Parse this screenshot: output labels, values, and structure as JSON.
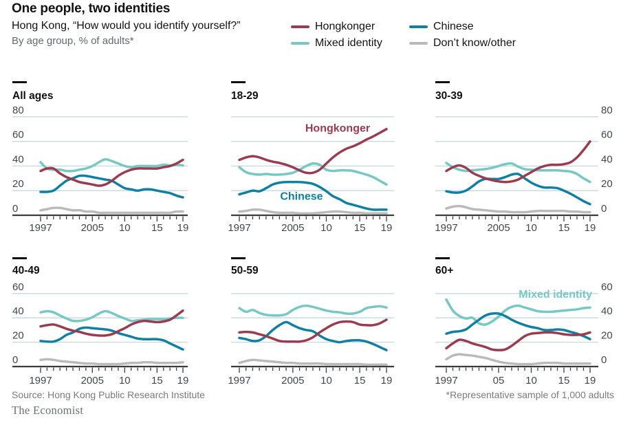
{
  "header": {
    "title": "One people, two identities",
    "subtitle": "Hong Kong, “How would you identify yourself?”",
    "note": "By age group, % of adults*"
  },
  "legend": [
    {
      "label": "Hongkonger",
      "color": "#9b3b4f"
    },
    {
      "label": "Chinese",
      "color": "#0f80a3"
    },
    {
      "label": "Mixed identity",
      "color": "#76c8c3"
    },
    {
      "label": "Don’t know/other",
      "color": "#b9bbba"
    }
  ],
  "footer": {
    "source": "Source: Hong Kong Public Research Institute",
    "note": "*Representative sample of 1,000 adults",
    "brand": "The Economist"
  },
  "colors": {
    "gridline": "#c4d7e0",
    "axis": "#3b3b3b",
    "tick_label": "#40474c",
    "panel_title": "#0f0f0f"
  },
  "years": [
    1997,
    1998,
    1999,
    2000,
    2001,
    2002,
    2003,
    2004,
    2005,
    2006,
    2007,
    2008,
    2009,
    2010,
    2011,
    2012,
    2013,
    2014,
    2015,
    2016,
    2017,
    2018,
    2019
  ],
  "chart_data": [
    {
      "type": "line",
      "title": "All ages",
      "ylim": [
        0,
        80
      ],
      "yticks": [
        0,
        20,
        40,
        60,
        80
      ],
      "xtick_years": [
        1997,
        2005,
        2010,
        2015,
        2019
      ],
      "xtick_labels": [
        "1997",
        "2005",
        "10",
        "15",
        "19"
      ],
      "series": [
        {
          "name": "Hongkonger",
          "values": [
            36,
            38,
            38,
            34,
            31,
            29,
            27,
            26,
            25,
            24,
            25,
            28,
            32,
            35,
            37,
            38,
            38,
            38,
            38,
            39,
            40,
            42,
            45
          ]
        },
        {
          "name": "Chinese",
          "values": [
            19,
            19,
            20,
            24,
            28,
            30,
            32,
            32,
            31,
            30,
            29,
            28,
            25,
            22,
            21,
            20,
            21,
            21,
            20,
            19,
            18,
            16,
            14.5
          ]
        },
        {
          "name": "Mixed identity",
          "values": [
            43,
            38,
            37,
            37,
            36,
            36,
            37,
            38,
            40,
            43,
            45.5,
            44,
            42,
            40,
            39,
            40,
            40,
            40,
            40,
            41,
            40.5,
            41,
            40.5
          ]
        },
        {
          "name": "Don’t know/other",
          "values": [
            4,
            5,
            6,
            6,
            5,
            4,
            4,
            3,
            3,
            2,
            2,
            2,
            2,
            2,
            2,
            2,
            2,
            2,
            2,
            2,
            2,
            3,
            3
          ]
        }
      ],
      "annotations": []
    },
    {
      "type": "line",
      "title": "18-29",
      "ylim": [
        0,
        80
      ],
      "yticks": [
        0,
        20,
        40,
        60,
        80
      ],
      "xtick_years": [
        1997,
        2005,
        2010,
        2015,
        2019
      ],
      "xtick_labels": [
        "1997",
        "2005",
        "10",
        "15",
        "19"
      ],
      "series": [
        {
          "name": "Hongkonger",
          "values": [
            45,
            47,
            48,
            47,
            45,
            43.5,
            42.5,
            41,
            39,
            36.5,
            34.5,
            34.5,
            37,
            42,
            47,
            51,
            54,
            56,
            58.5,
            61.5,
            64,
            67,
            70
          ]
        },
        {
          "name": "Chinese",
          "values": [
            17,
            18.5,
            20,
            19.5,
            22,
            25,
            26.5,
            27,
            27,
            27,
            26.5,
            25.5,
            23,
            19.5,
            15.5,
            13,
            10,
            8.5,
            7,
            5.5,
            4.5,
            4.5,
            4.5
          ]
        },
        {
          "name": "Mixed identity",
          "values": [
            39,
            35,
            33.5,
            33,
            33.5,
            33,
            33,
            33.5,
            34.5,
            37,
            40,
            42,
            41,
            37,
            36,
            36.5,
            36.5,
            36,
            34.5,
            33,
            31,
            28,
            25
          ]
        },
        {
          "name": "Don’t know/other",
          "values": [
            3,
            3.5,
            4.5,
            4.5,
            3.5,
            2.5,
            2,
            2,
            2,
            1.5,
            1.5,
            1.5,
            2,
            2.5,
            3,
            3,
            2.5,
            2,
            2,
            1.5,
            1.5,
            1.5,
            1.5
          ]
        }
      ],
      "annotations": [
        {
          "text": "Hongkonger",
          "year": 2011.7,
          "value": 68
        },
        {
          "text": "Chinese",
          "year": 2006.3,
          "value": 12.5
        }
      ]
    },
    {
      "type": "line",
      "title": "30-39",
      "ylim": [
        0,
        80
      ],
      "yticks": [
        0,
        20,
        40,
        60,
        80
      ],
      "xtick_years": [
        1997,
        2005,
        2010,
        2015,
        2019
      ],
      "xtick_labels": [
        "1997",
        "2005",
        "10",
        "15",
        "19"
      ],
      "series": [
        {
          "name": "Hongkonger",
          "values": [
            36,
            39,
            40.5,
            38.5,
            34.5,
            32,
            30,
            28.5,
            27.5,
            27,
            27.5,
            29,
            32,
            35,
            38,
            40,
            41,
            41,
            41.5,
            43,
            47,
            53,
            60
          ]
        },
        {
          "name": "Chinese",
          "values": [
            19.5,
            18.5,
            18.5,
            20,
            23.5,
            27.5,
            29.5,
            29.5,
            29.5,
            31,
            33,
            33.5,
            30,
            26.5,
            24,
            22.5,
            22.5,
            22,
            20,
            17.5,
            14.5,
            11.5,
            9
          ]
        },
        {
          "name": "Mixed identity",
          "values": [
            42.5,
            39,
            37,
            36,
            36.5,
            37,
            37.5,
            38.5,
            40,
            41.5,
            42,
            39.5,
            37.5,
            37,
            36.5,
            36.5,
            36.5,
            36.5,
            36,
            35.5,
            33.5,
            30,
            27
          ]
        },
        {
          "name": "Don’t know/other",
          "values": [
            5.5,
            7,
            7.5,
            6.5,
            5,
            4.5,
            4,
            3.5,
            3,
            3,
            2.5,
            2.5,
            2.5,
            3,
            3.5,
            3.5,
            3.5,
            3.5,
            3.5,
            3,
            3,
            2.5,
            2.5
          ]
        }
      ],
      "annotations": []
    },
    {
      "type": "line",
      "title": "40-49",
      "ylim": [
        0,
        60
      ],
      "yticks": [
        0,
        20,
        40,
        60
      ],
      "xtick_years": [
        1997,
        2005,
        2010,
        2015,
        2019
      ],
      "xtick_labels": [
        "1997",
        "2005",
        "10",
        "15",
        "19"
      ],
      "series": [
        {
          "name": "Hongkonger",
          "values": [
            33,
            34,
            34.5,
            33,
            31,
            29.5,
            28.5,
            27,
            26,
            25.5,
            25.5,
            26.5,
            29,
            31.5,
            34.5,
            36.5,
            37.5,
            37,
            36.5,
            37,
            38.5,
            42,
            46
          ]
        },
        {
          "name": "Chinese",
          "values": [
            21,
            20.5,
            20.5,
            22.5,
            26,
            28,
            31,
            32,
            31.5,
            31,
            30.5,
            29.5,
            27.5,
            26,
            24.5,
            23,
            22.5,
            22.5,
            22.5,
            21.5,
            19,
            16.5,
            14
          ]
        },
        {
          "name": "Mixed identity",
          "values": [
            44.5,
            45.5,
            44.5,
            42,
            39.5,
            37.5,
            37.5,
            38.5,
            40.5,
            43.5,
            45.5,
            44,
            41.5,
            39.5,
            37.5,
            38,
            38.5,
            39,
            39,
            39,
            39.5,
            40,
            40
          ]
        },
        {
          "name": "Don’t know/other",
          "values": [
            5.5,
            6,
            5.5,
            4.5,
            4,
            3.5,
            3,
            2.5,
            2.5,
            2,
            2,
            2,
            2,
            2.5,
            3,
            3,
            3.5,
            3.5,
            3,
            3,
            3,
            3,
            3.5
          ]
        }
      ],
      "annotations": []
    },
    {
      "type": "line",
      "title": "50-59",
      "ylim": [
        0,
        60
      ],
      "yticks": [
        0,
        20,
        40,
        60
      ],
      "xtick_years": [
        1997,
        2005,
        2010,
        2015,
        2019
      ],
      "xtick_labels": [
        "1997",
        "2005",
        "10",
        "15",
        "19"
      ],
      "series": [
        {
          "name": "Hongkonger",
          "values": [
            28,
            28.5,
            28,
            26.5,
            25,
            23,
            21,
            20.5,
            20.5,
            20.5,
            21.5,
            24,
            28,
            31.5,
            34.5,
            36.5,
            37,
            36.5,
            34.5,
            34,
            34,
            35.5,
            38.5
          ]
        },
        {
          "name": "Chinese",
          "values": [
            23.5,
            22.5,
            21,
            21.5,
            25,
            30,
            34,
            36.5,
            34,
            31.5,
            30,
            29,
            25.5,
            22.5,
            21,
            20,
            21,
            21.5,
            21.5,
            20.5,
            18.5,
            16,
            13.5
          ]
        },
        {
          "name": "Mixed identity",
          "values": [
            48,
            45,
            46.5,
            44,
            42.5,
            42,
            42,
            43,
            46.5,
            49,
            50,
            49,
            47.5,
            46,
            45,
            44.5,
            43.5,
            43.5,
            45,
            48,
            49,
            49.5,
            48.5
          ]
        },
        {
          "name": "Don’t know/other",
          "values": [
            3,
            4.5,
            5.5,
            5,
            4.5,
            4,
            3.5,
            3,
            3,
            2.5,
            2.5,
            2.5,
            2.5,
            2,
            2,
            2,
            2,
            2,
            2,
            1.5,
            1.5,
            1.5,
            1.5
          ]
        }
      ],
      "annotations": []
    },
    {
      "type": "line",
      "title": "60+",
      "ylim": [
        0,
        60
      ],
      "yticks": [
        0,
        20,
        40,
        60
      ],
      "xtick_years": [
        1997,
        2005,
        2010,
        2015,
        2019
      ],
      "xtick_labels": [
        "1997",
        "05",
        "10",
        "15",
        "19"
      ],
      "series": [
        {
          "name": "Hongkonger",
          "values": [
            15,
            19,
            22,
            21,
            19,
            17.5,
            16,
            14,
            13.5,
            14,
            17,
            21,
            25,
            27,
            27.5,
            28,
            28,
            27.5,
            26.5,
            26,
            26,
            26.5,
            28
          ]
        },
        {
          "name": "Chinese",
          "values": [
            27,
            28.5,
            29,
            30.5,
            34.5,
            38.5,
            42,
            43.5,
            43.5,
            41.5,
            38.5,
            36,
            34,
            32.5,
            31.5,
            30,
            30,
            30.5,
            30,
            28.5,
            27,
            25,
            22.5
          ]
        },
        {
          "name": "Mixed identity",
          "values": [
            55,
            46,
            41.5,
            39.5,
            40,
            35.5,
            34.5,
            37,
            41,
            46,
            49,
            50,
            48.5,
            47,
            45.5,
            45,
            45,
            45.5,
            46,
            46.5,
            47,
            48,
            48.5
          ]
        },
        {
          "name": "Don’t know/other",
          "values": [
            6,
            9,
            10,
            9.5,
            9,
            8,
            7,
            5.5,
            4,
            3,
            2.5,
            2,
            2,
            2,
            2.5,
            3,
            3,
            3,
            2.5,
            2.5,
            2.5,
            2.5,
            2.5
          ]
        }
      ],
      "annotations": [
        {
          "text": "Mixed identity",
          "year": 2013.7,
          "value": 56.5
        }
      ]
    }
  ]
}
